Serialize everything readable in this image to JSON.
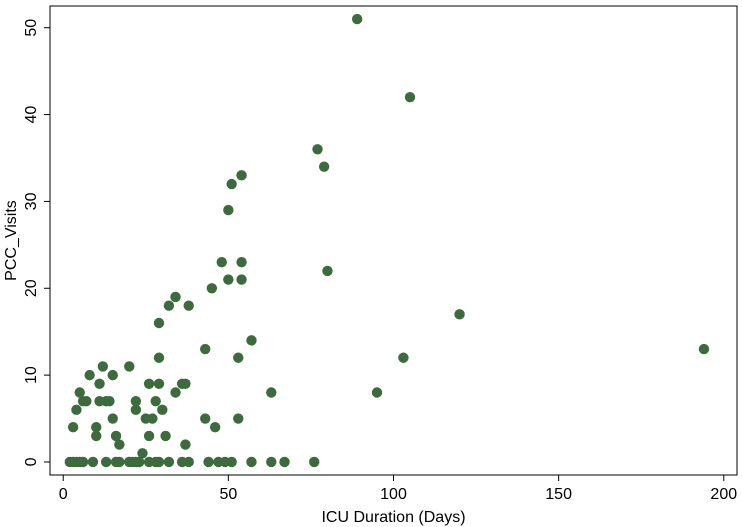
{
  "chart_data": {
    "type": "scatter",
    "title": "",
    "xlabel": "ICU Duration (Days)",
    "ylabel": "PCC_Visits",
    "xlim": [
      -4,
      204
    ],
    "ylim": [
      -1.5,
      52.5
    ],
    "xticks": [
      0,
      50,
      100,
      150,
      200
    ],
    "yticks": [
      0,
      10,
      20,
      30,
      40,
      50
    ],
    "grid": false,
    "point_color": "#3e6b3e",
    "series": [
      {
        "points": [
          [
            2,
            0
          ],
          [
            3,
            0
          ],
          [
            4,
            0
          ],
          [
            5,
            0
          ],
          [
            6,
            0
          ],
          [
            9,
            0
          ],
          [
            13,
            0
          ],
          [
            16,
            0
          ],
          [
            17,
            0
          ],
          [
            20,
            0
          ],
          [
            21,
            0
          ],
          [
            22,
            0
          ],
          [
            23,
            0
          ],
          [
            26,
            0
          ],
          [
            28,
            0
          ],
          [
            29,
            0
          ],
          [
            32,
            0
          ],
          [
            36,
            0
          ],
          [
            38,
            0
          ],
          [
            44,
            0
          ],
          [
            47,
            0
          ],
          [
            49,
            0
          ],
          [
            51,
            0
          ],
          [
            57,
            0
          ],
          [
            63,
            0
          ],
          [
            67,
            0
          ],
          [
            76,
            0
          ],
          [
            24,
            1
          ],
          [
            17,
            2
          ],
          [
            37,
            2
          ],
          [
            10,
            3
          ],
          [
            16,
            3
          ],
          [
            26,
            3
          ],
          [
            31,
            3
          ],
          [
            3,
            4
          ],
          [
            10,
            4
          ],
          [
            46,
            4
          ],
          [
            15,
            5
          ],
          [
            25,
            5
          ],
          [
            27,
            5
          ],
          [
            43,
            5
          ],
          [
            53,
            5
          ],
          [
            4,
            6
          ],
          [
            22,
            6
          ],
          [
            30,
            6
          ],
          [
            6,
            7
          ],
          [
            7,
            7
          ],
          [
            11,
            7
          ],
          [
            13,
            7
          ],
          [
            14,
            7
          ],
          [
            22,
            7
          ],
          [
            28,
            7
          ],
          [
            5,
            8
          ],
          [
            34,
            8
          ],
          [
            63,
            8
          ],
          [
            95,
            8
          ],
          [
            11,
            9
          ],
          [
            26,
            9
          ],
          [
            29,
            9
          ],
          [
            36,
            9
          ],
          [
            37,
            9
          ],
          [
            8,
            10
          ],
          [
            15,
            10
          ],
          [
            12,
            11
          ],
          [
            20,
            11
          ],
          [
            29,
            12
          ],
          [
            53,
            12
          ],
          [
            103,
            12
          ],
          [
            43,
            13
          ],
          [
            194,
            13
          ],
          [
            57,
            14
          ],
          [
            29,
            16
          ],
          [
            120,
            17
          ],
          [
            32,
            18
          ],
          [
            38,
            18
          ],
          [
            34,
            19
          ],
          [
            45,
            20
          ],
          [
            50,
            21
          ],
          [
            54,
            21
          ],
          [
            80,
            22
          ],
          [
            48,
            23
          ],
          [
            54,
            23
          ],
          [
            50,
            29
          ],
          [
            51,
            32
          ],
          [
            54,
            33
          ],
          [
            79,
            34
          ],
          [
            77,
            36
          ],
          [
            105,
            42
          ],
          [
            89,
            51
          ]
        ]
      }
    ]
  }
}
